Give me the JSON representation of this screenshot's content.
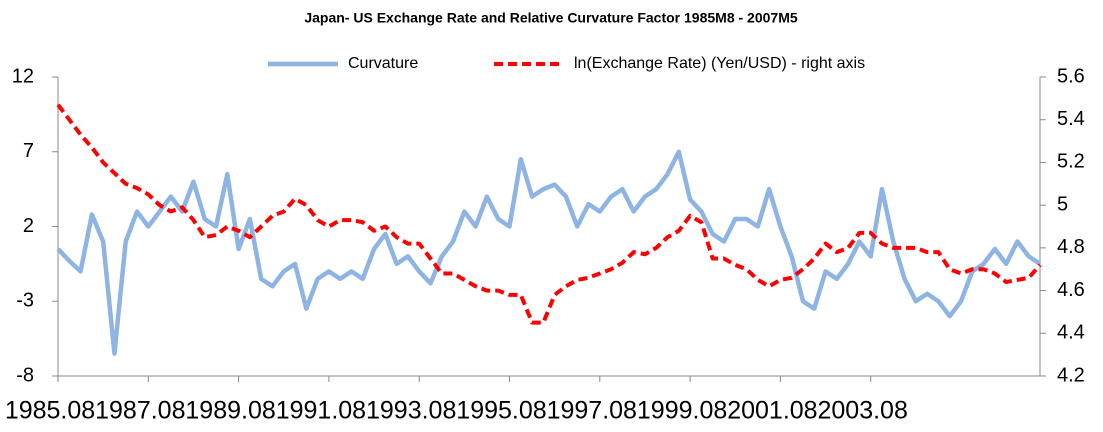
{
  "chart_data": {
    "type": "line",
    "title": "Japan- US Exchange Rate and Relative Curvature Factor  1985M8 - 2007M5",
    "categories": [
      "1985.08",
      null,
      null,
      null,
      null,
      null,
      null,
      null,
      "1987.08",
      null,
      null,
      null,
      null,
      null,
      null,
      null,
      "1989.08",
      null,
      null,
      null,
      null,
      null,
      null,
      null,
      "1991.08",
      null,
      null,
      null,
      null,
      null,
      null,
      null,
      "1993.08",
      null,
      null,
      null,
      null,
      null,
      null,
      null,
      "1995.08",
      null,
      null,
      null,
      null,
      null,
      null,
      null,
      "1997.08",
      null,
      null,
      null,
      null,
      null,
      null,
      null,
      "1999.08",
      null,
      null,
      null,
      null,
      null,
      null,
      null,
      "2001.08",
      null,
      null,
      null,
      null,
      null,
      null,
      null,
      "2003.08",
      null,
      null,
      null,
      null,
      null,
      null,
      null,
      null,
      null,
      null,
      null,
      null,
      null,
      null,
      null
    ],
    "series": [
      {
        "name": "Curvature",
        "color": "#8eb4e3",
        "axis": "y",
        "values": [
          0.5,
          -0.3,
          -1.0,
          2.8,
          1.0,
          -6.5,
          1.0,
          3.0,
          2.0,
          3.0,
          4.0,
          3.0,
          5.0,
          2.5,
          2.0,
          5.5,
          0.5,
          2.5,
          -1.5,
          -2.0,
          -1.0,
          -0.5,
          -3.5,
          -1.5,
          -1.0,
          -1.5,
          -1.0,
          -1.5,
          0.5,
          1.5,
          -0.5,
          0.0,
          -1.0,
          -1.8,
          0.0,
          1.0,
          3.0,
          2.0,
          4.0,
          2.5,
          2.0,
          6.5,
          4.0,
          4.5,
          4.8,
          4.0,
          2.0,
          3.5,
          3.0,
          4.0,
          4.5,
          3.0,
          4.0,
          4.5,
          5.5,
          7.0,
          3.8,
          3.0,
          1.5,
          1.0,
          2.5,
          2.5,
          2.0,
          4.5,
          2.0,
          0.0,
          -3.0,
          -3.5,
          -1.0,
          -1.5,
          -0.5,
          1.0,
          0.0,
          4.5,
          1.0,
          -1.5,
          -3.0,
          -2.5,
          -3.0,
          -4.0,
          -3.0,
          -1.0,
          -0.5,
          0.5,
          -0.5,
          1.0,
          0.0,
          -0.5
        ]
      },
      {
        "name": "ln(Exchange Rate) (Yen/USD) - right axis",
        "color": "#ff0000",
        "axis": "y2",
        "dashed": true,
        "values": [
          5.47,
          5.4,
          5.33,
          5.27,
          5.2,
          5.15,
          5.1,
          5.08,
          5.05,
          5.0,
          4.97,
          4.99,
          4.93,
          4.85,
          4.86,
          4.9,
          4.88,
          4.85,
          4.9,
          4.95,
          4.97,
          5.03,
          5.0,
          4.93,
          4.9,
          4.93,
          4.93,
          4.92,
          4.88,
          4.9,
          4.85,
          4.82,
          4.82,
          4.75,
          4.68,
          4.68,
          4.65,
          4.62,
          4.6,
          4.6,
          4.58,
          4.58,
          4.45,
          4.45,
          4.58,
          4.62,
          4.65,
          4.66,
          4.68,
          4.7,
          4.73,
          4.78,
          4.77,
          4.8,
          4.85,
          4.88,
          4.95,
          4.92,
          4.75,
          4.75,
          4.72,
          4.7,
          4.65,
          4.62,
          4.65,
          4.66,
          4.7,
          4.75,
          4.82,
          4.78,
          4.8,
          4.87,
          4.87,
          4.82,
          4.8,
          4.8,
          4.8,
          4.78,
          4.78,
          4.7,
          4.68,
          4.7,
          4.7,
          4.68,
          4.64,
          4.65,
          4.66,
          4.72
        ]
      }
    ],
    "ylim": [
      -8,
      12
    ],
    "yticks": [
      12,
      7,
      2,
      -3,
      -8
    ],
    "y2lim": [
      4.2,
      5.6
    ],
    "y2ticks": [
      5.6,
      5.4,
      5.2,
      5,
      4.8,
      4.6,
      4.4,
      4.2
    ],
    "legend": "top",
    "grid": false
  }
}
